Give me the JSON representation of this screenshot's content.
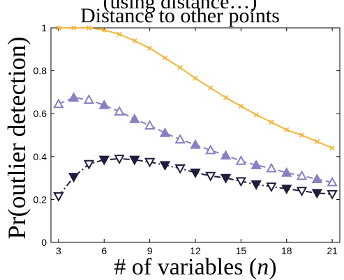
{
  "chart_data": {
    "type": "line",
    "title_partial": "(using distance…)",
    "title": "Distance to other points",
    "xlabel_prefix": "# of variables (",
    "xlabel_var": "n",
    "xlabel_suffix": ")",
    "ylabel": "Pr(outlier detection)",
    "xlim": [
      2.5,
      21.5
    ],
    "ylim": [
      0,
      1
    ],
    "xticks": [
      3,
      6,
      9,
      12,
      15,
      18,
      21
    ],
    "yticks": [
      0,
      0.2,
      0.4,
      0.6,
      0.8,
      1
    ],
    "ytick_labels": [
      "0",
      "0.2",
      "0.4",
      "0.6",
      "0.8",
      "1"
    ],
    "grid": false,
    "legend": "none",
    "x": [
      3,
      4,
      5,
      6,
      7,
      8,
      9,
      10,
      11,
      12,
      13,
      14,
      15,
      16,
      17,
      18,
      19,
      20,
      21
    ],
    "series": [
      {
        "color": "#f2b53a",
        "line": "solid",
        "marker": "x",
        "values": [
          1.0,
          1.0,
          1.0,
          0.99,
          0.97,
          0.94,
          0.905,
          0.86,
          0.815,
          0.765,
          0.72,
          0.675,
          0.635,
          0.595,
          0.56,
          0.525,
          0.5,
          0.47,
          0.44
        ]
      },
      {
        "color": "#8880c2",
        "line": "dashed",
        "marker": "triangle-alternating",
        "values": [
          0.645,
          0.675,
          0.665,
          0.64,
          0.61,
          0.575,
          0.545,
          0.51,
          0.48,
          0.455,
          0.43,
          0.405,
          0.38,
          0.36,
          0.345,
          0.325,
          0.31,
          0.295,
          0.28
        ]
      },
      {
        "color": "#1e1e3c",
        "line": "dashdot",
        "marker": "triangle-down-alternating",
        "values": [
          0.215,
          0.305,
          0.365,
          0.385,
          0.39,
          0.385,
          0.375,
          0.36,
          0.345,
          0.325,
          0.31,
          0.3,
          0.285,
          0.27,
          0.26,
          0.25,
          0.24,
          0.23,
          0.225
        ]
      }
    ]
  }
}
